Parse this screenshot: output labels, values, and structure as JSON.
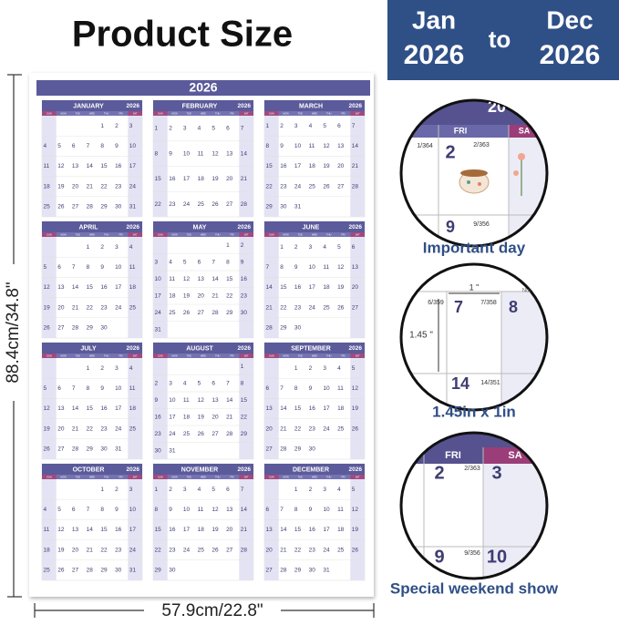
{
  "header": {
    "title": "Product Size",
    "range": {
      "start_month": "Jan",
      "start_year": "2026",
      "to": "to",
      "end_month": "Dec",
      "end_year": "2026"
    }
  },
  "calendar": {
    "year": "2026",
    "weekdays": [
      "SUN",
      "MON",
      "TUE",
      "WED",
      "THU",
      "FRI",
      "SAT"
    ],
    "months": [
      {
        "name": "JANUARY",
        "year": "2026",
        "days": [
          null,
          null,
          null,
          null,
          1,
          2,
          3,
          4,
          5,
          6,
          7,
          8,
          9,
          10,
          11,
          12,
          13,
          14,
          15,
          16,
          17,
          18,
          19,
          20,
          21,
          22,
          23,
          24,
          25,
          26,
          27,
          28,
          29,
          30,
          31
        ]
      },
      {
        "name": "FEBRUARY",
        "year": "2026",
        "days": [
          1,
          2,
          3,
          4,
          5,
          6,
          7,
          8,
          9,
          10,
          11,
          12,
          13,
          14,
          15,
          16,
          17,
          18,
          19,
          20,
          21,
          22,
          23,
          24,
          25,
          26,
          27,
          28
        ]
      },
      {
        "name": "MARCH",
        "year": "2026",
        "days": [
          1,
          2,
          3,
          4,
          5,
          6,
          7,
          8,
          9,
          10,
          11,
          12,
          13,
          14,
          15,
          16,
          17,
          18,
          19,
          20,
          21,
          22,
          23,
          24,
          25,
          26,
          27,
          28,
          29,
          30,
          31
        ]
      },
      {
        "name": "APRIL",
        "year": "2026",
        "days": [
          null,
          null,
          null,
          1,
          2,
          3,
          4,
          5,
          6,
          7,
          8,
          9,
          10,
          11,
          12,
          13,
          14,
          15,
          16,
          17,
          18,
          19,
          20,
          21,
          22,
          23,
          24,
          25,
          26,
          27,
          28,
          29,
          30
        ]
      },
      {
        "name": "MAY",
        "year": "2026",
        "days": [
          null,
          null,
          null,
          null,
          null,
          1,
          2,
          3,
          4,
          5,
          6,
          7,
          8,
          9,
          10,
          11,
          12,
          13,
          14,
          15,
          16,
          17,
          18,
          19,
          20,
          21,
          22,
          23,
          24,
          25,
          26,
          27,
          28,
          29,
          30,
          31
        ]
      },
      {
        "name": "JUNE",
        "year": "2026",
        "days": [
          null,
          1,
          2,
          3,
          4,
          5,
          6,
          7,
          8,
          9,
          10,
          11,
          12,
          13,
          14,
          15,
          16,
          17,
          18,
          19,
          20,
          21,
          22,
          23,
          24,
          25,
          26,
          27,
          28,
          29,
          30
        ]
      },
      {
        "name": "JULY",
        "year": "2026",
        "days": [
          null,
          null,
          null,
          1,
          2,
          3,
          4,
          5,
          6,
          7,
          8,
          9,
          10,
          11,
          12,
          13,
          14,
          15,
          16,
          17,
          18,
          19,
          20,
          21,
          22,
          23,
          24,
          25,
          26,
          27,
          28,
          29,
          30,
          31
        ]
      },
      {
        "name": "AUGUST",
        "year": "2026",
        "days": [
          null,
          null,
          null,
          null,
          null,
          null,
          1,
          2,
          3,
          4,
          5,
          6,
          7,
          8,
          9,
          10,
          11,
          12,
          13,
          14,
          15,
          16,
          17,
          18,
          19,
          20,
          21,
          22,
          23,
          24,
          25,
          26,
          27,
          28,
          29,
          30,
          31
        ]
      },
      {
        "name": "SEPTEMBER",
        "year": "2026",
        "days": [
          null,
          null,
          1,
          2,
          3,
          4,
          5,
          6,
          7,
          8,
          9,
          10,
          11,
          12,
          13,
          14,
          15,
          16,
          17,
          18,
          19,
          20,
          21,
          22,
          23,
          24,
          25,
          26,
          27,
          28,
          29,
          30
        ]
      },
      {
        "name": "OCTOBER",
        "year": "2026",
        "days": [
          null,
          null,
          null,
          null,
          1,
          2,
          3,
          4,
          5,
          6,
          7,
          8,
          9,
          10,
          11,
          12,
          13,
          14,
          15,
          16,
          17,
          18,
          19,
          20,
          21,
          22,
          23,
          24,
          25,
          26,
          27,
          28,
          29,
          30,
          31
        ]
      },
      {
        "name": "NOVEMBER",
        "year": "2026",
        "days": [
          1,
          2,
          3,
          4,
          5,
          6,
          7,
          8,
          9,
          10,
          11,
          12,
          13,
          14,
          15,
          16,
          17,
          18,
          19,
          20,
          21,
          22,
          23,
          24,
          25,
          26,
          27,
          28,
          29,
          30
        ]
      },
      {
        "name": "DECEMBER",
        "year": "2026",
        "days": [
          null,
          null,
          1,
          2,
          3,
          4,
          5,
          6,
          7,
          8,
          9,
          10,
          11,
          12,
          13,
          14,
          15,
          16,
          17,
          18,
          19,
          20,
          21,
          22,
          23,
          24,
          25,
          26,
          27,
          28,
          29,
          30,
          31
        ]
      }
    ]
  },
  "dimensions": {
    "height": "88.4cm/34.8\"",
    "width": "57.9cm/22.8\""
  },
  "features": [
    {
      "caption": "Important day",
      "labels": [
        "20",
        "FRI",
        "SA",
        "1/364",
        "2",
        "2/363",
        "9",
        "9/356"
      ]
    },
    {
      "caption": "1.45in x 1in",
      "labels": [
        "1 \"",
        "6/359",
        "7",
        "7/358",
        "8",
        "None",
        "1.45 \"",
        "14",
        "14/351"
      ]
    },
    {
      "caption": "Special weekend show",
      "labels": [
        "FRI",
        "SA",
        "2",
        "2/363",
        "3",
        "9",
        "9/356",
        "10"
      ]
    }
  ]
}
